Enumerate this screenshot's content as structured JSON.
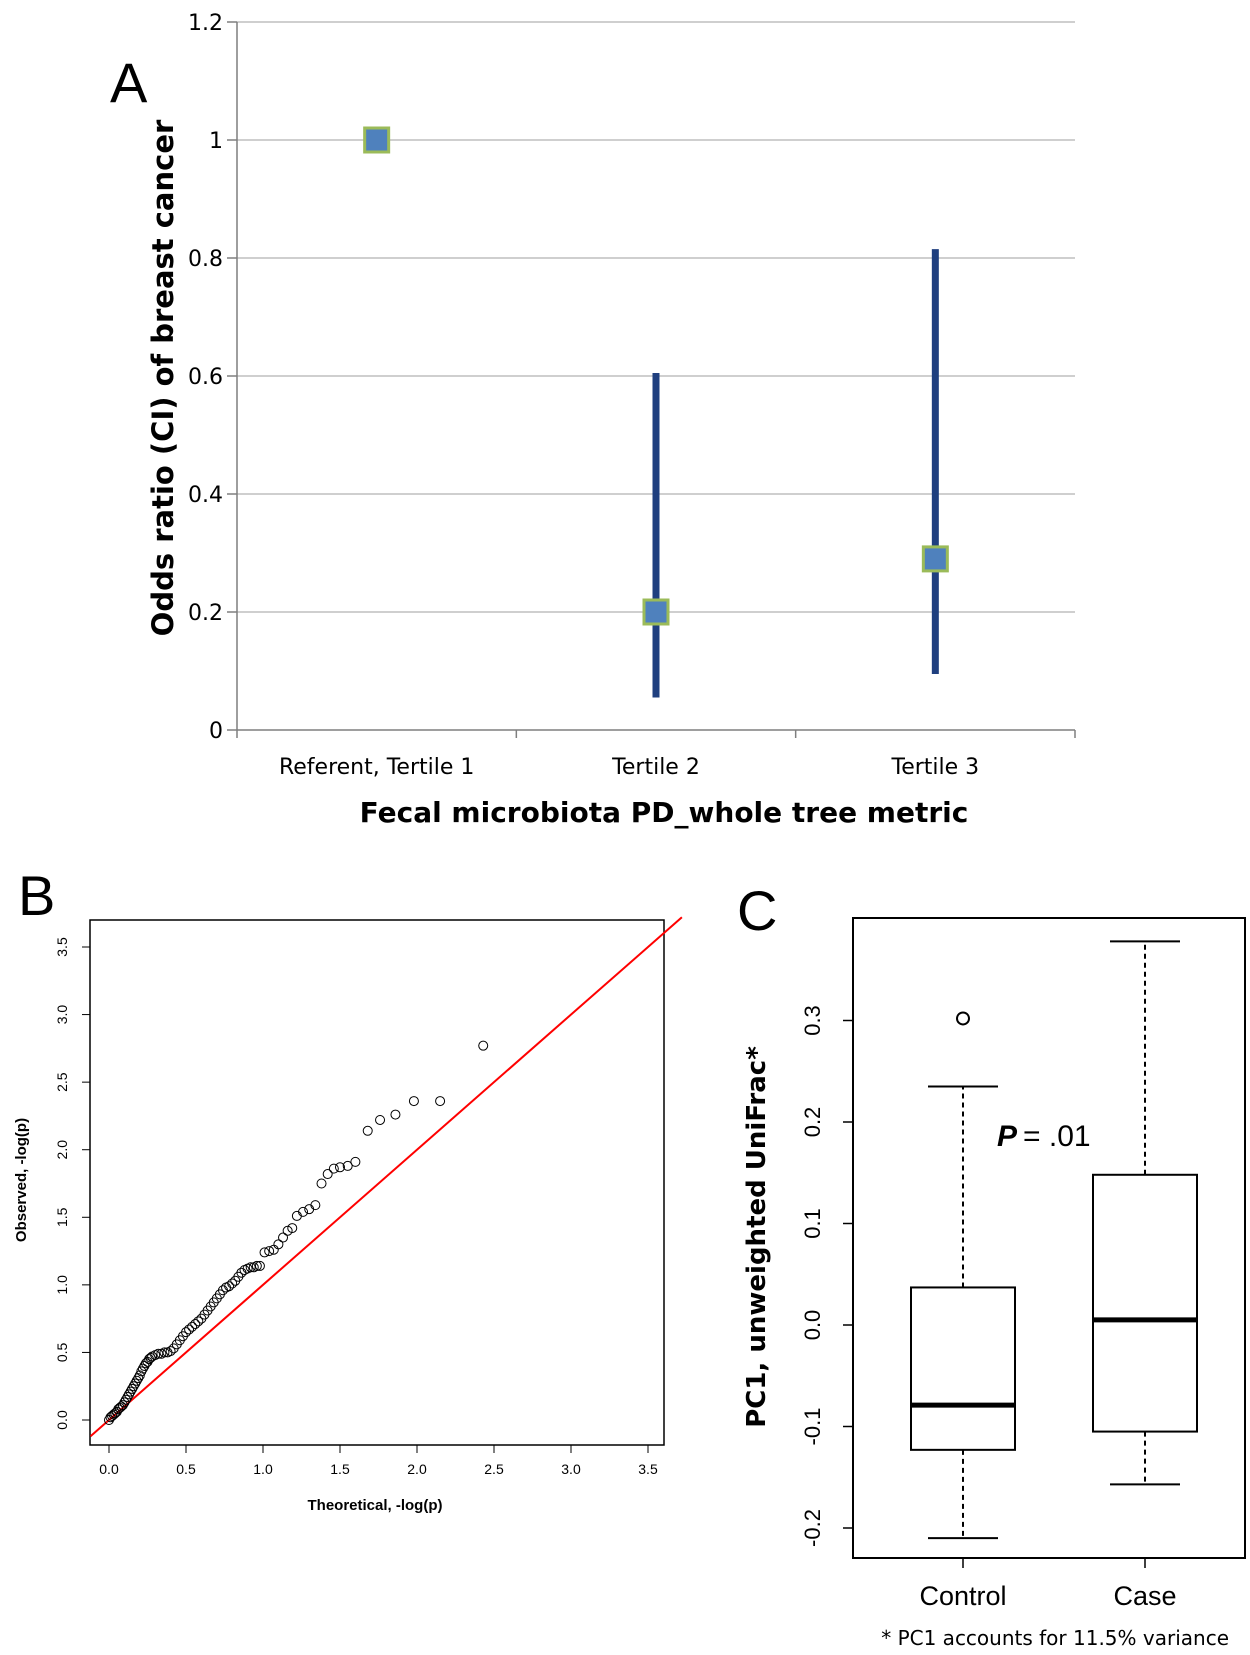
{
  "chart_data": [
    {
      "panel": "A",
      "type": "scatter",
      "title": "",
      "xlabel": "Fecal microbiota PD_whole tree metric",
      "ylabel": "Odds ratio (CI) of breast cancer",
      "categories": [
        "Referent, Tertile 1",
        "Tertile 2",
        "Tertile 3"
      ],
      "series": [
        {
          "values": [
            1.0,
            0.2,
            0.29
          ],
          "ci_low": [
            null,
            0.055,
            0.095
          ],
          "ci_high": [
            null,
            0.605,
            0.815
          ]
        }
      ],
      "ylim": [
        0,
        1.2
      ],
      "yticks": [
        "0",
        "0.2",
        "0.4",
        "0.6",
        "0.8",
        "1",
        "1.2"
      ],
      "ytick_values": [
        0,
        0.2,
        0.4,
        0.6,
        0.8,
        1.0,
        1.2
      ],
      "grid": true,
      "colors": {
        "marker": "#4f81bd",
        "marker_edge": "#9bbb59",
        "ci": "#1f3f7f",
        "grid": "#bfbfbf",
        "axis": "#7f7f7f"
      }
    },
    {
      "panel": "B",
      "type": "scatter",
      "title": "",
      "xlabel": "Theoretical, -log(p)",
      "ylabel": "Observed, -log(p)",
      "xlim": [
        0,
        3.6
      ],
      "ylim": [
        0,
        3.6
      ],
      "xticks": [
        "0.0",
        "0.5",
        "1.0",
        "1.5",
        "2.0",
        "2.5",
        "3.0",
        "3.5"
      ],
      "yticks": [
        "0.0",
        "0.5",
        "1.0",
        "1.5",
        "2.0",
        "2.5",
        "3.0",
        "3.5"
      ],
      "tick_values": [
        0,
        0.5,
        1.0,
        1.5,
        2.0,
        2.5,
        3.0,
        3.5
      ],
      "reference_line": "y = x",
      "points": [
        [
          0.0,
          0.0
        ],
        [
          0.01,
          0.02
        ],
        [
          0.02,
          0.03
        ],
        [
          0.03,
          0.04
        ],
        [
          0.04,
          0.05
        ],
        [
          0.05,
          0.06
        ],
        [
          0.06,
          0.08
        ],
        [
          0.07,
          0.09
        ],
        [
          0.08,
          0.1
        ],
        [
          0.09,
          0.11
        ],
        [
          0.1,
          0.13
        ],
        [
          0.11,
          0.15
        ],
        [
          0.12,
          0.17
        ],
        [
          0.13,
          0.19
        ],
        [
          0.14,
          0.21
        ],
        [
          0.15,
          0.23
        ],
        [
          0.16,
          0.25
        ],
        [
          0.17,
          0.27
        ],
        [
          0.18,
          0.29
        ],
        [
          0.19,
          0.31
        ],
        [
          0.2,
          0.33
        ],
        [
          0.21,
          0.36
        ],
        [
          0.22,
          0.38
        ],
        [
          0.23,
          0.4
        ],
        [
          0.24,
          0.42
        ],
        [
          0.25,
          0.43
        ],
        [
          0.26,
          0.45
        ],
        [
          0.27,
          0.46
        ],
        [
          0.28,
          0.47
        ],
        [
          0.3,
          0.48
        ],
        [
          0.32,
          0.49
        ],
        [
          0.34,
          0.49
        ],
        [
          0.36,
          0.5
        ],
        [
          0.38,
          0.5
        ],
        [
          0.4,
          0.51
        ],
        [
          0.42,
          0.53
        ],
        [
          0.44,
          0.56
        ],
        [
          0.46,
          0.59
        ],
        [
          0.48,
          0.62
        ],
        [
          0.5,
          0.65
        ],
        [
          0.52,
          0.67
        ],
        [
          0.54,
          0.69
        ],
        [
          0.56,
          0.71
        ],
        [
          0.58,
          0.73
        ],
        [
          0.6,
          0.75
        ],
        [
          0.62,
          0.78
        ],
        [
          0.64,
          0.81
        ],
        [
          0.66,
          0.84
        ],
        [
          0.68,
          0.87
        ],
        [
          0.7,
          0.9
        ],
        [
          0.72,
          0.93
        ],
        [
          0.74,
          0.96
        ],
        [
          0.76,
          0.98
        ],
        [
          0.78,
          0.99
        ],
        [
          0.8,
          1.01
        ],
        [
          0.82,
          1.03
        ],
        [
          0.84,
          1.06
        ],
        [
          0.86,
          1.09
        ],
        [
          0.88,
          1.11
        ],
        [
          0.9,
          1.12
        ],
        [
          0.92,
          1.13
        ],
        [
          0.94,
          1.13
        ],
        [
          0.96,
          1.14
        ],
        [
          0.98,
          1.14
        ],
        [
          1.01,
          1.24
        ],
        [
          1.04,
          1.25
        ],
        [
          1.07,
          1.26
        ],
        [
          1.1,
          1.3
        ],
        [
          1.13,
          1.35
        ],
        [
          1.16,
          1.4
        ],
        [
          1.19,
          1.42
        ],
        [
          1.22,
          1.51
        ],
        [
          1.26,
          1.54
        ],
        [
          1.3,
          1.56
        ],
        [
          1.34,
          1.59
        ],
        [
          1.38,
          1.75
        ],
        [
          1.42,
          1.82
        ],
        [
          1.46,
          1.86
        ],
        [
          1.5,
          1.87
        ],
        [
          1.55,
          1.88
        ],
        [
          1.6,
          1.91
        ],
        [
          1.68,
          2.14
        ],
        [
          1.76,
          2.22
        ],
        [
          1.86,
          2.26
        ],
        [
          1.98,
          2.36
        ],
        [
          2.15,
          2.36
        ],
        [
          2.43,
          2.77
        ]
      ],
      "colors": {
        "points": "#000000",
        "reference_line": "#ff0000"
      }
    },
    {
      "panel": "C",
      "type": "box",
      "title": "",
      "xlabel": "",
      "ylabel": "PC1, unweighted UniFrac*",
      "categories": [
        "Control",
        "Case"
      ],
      "boxes": [
        {
          "name": "Control",
          "whisker_low": -0.21,
          "q1": -0.123,
          "median": -0.079,
          "q3": 0.037,
          "whisker_high": 0.235,
          "outliers": [
            0.302
          ]
        },
        {
          "name": "Case",
          "whisker_low": -0.157,
          "q1": -0.105,
          "median": 0.005,
          "q3": 0.148,
          "whisker_high": 0.378,
          "outliers": []
        }
      ],
      "ylim": [
        -0.245,
        0.405
      ],
      "yticks": [
        "-0.2",
        "-0.1",
        "0.0",
        "0.1",
        "0.2",
        "0.3"
      ],
      "ytick_values": [
        -0.2,
        -0.1,
        0.0,
        0.1,
        0.2,
        0.3
      ],
      "annotations": {
        "p_label": "P",
        "p_value": "= .01"
      },
      "footnote": "* PC1 accounts for 11.5% variance"
    }
  ],
  "panel_labels": {
    "a": "A",
    "b": "B",
    "c": "C"
  }
}
